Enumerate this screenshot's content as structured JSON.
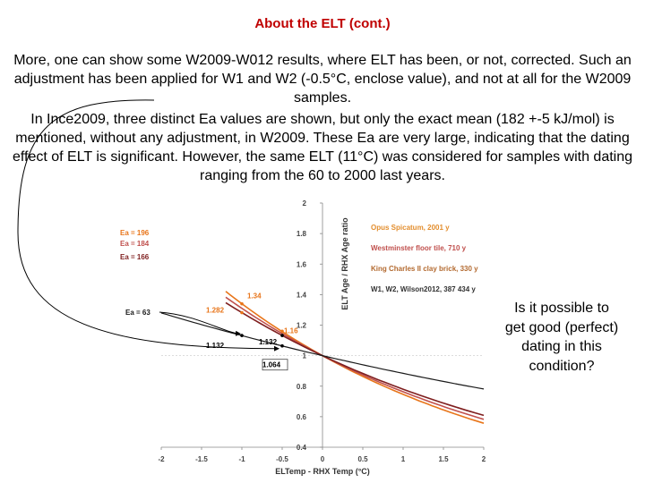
{
  "slide": {
    "title": "About the ELT (cont.)",
    "paragraph1": "More, one can show some W2009-W012 results, where ELT has been, or not, corrected. Such an adjustment  has been applied for W1 and W2 (-0.5°C, enclose value), and not at all for the W2009 samples.",
    "paragraph2": "In Ince2009, three distinct Ea values are shown, but only the exact mean (182 +-5 kJ/mol) is mentioned, without any adjustment, in W2009. These Ea are very large, indicating that the dating effect of ELT is significant. However, the same ELT (11°C) was considered for samples with dating ranging from the 60 to 2000 last years.",
    "question": "Is it possible to get good (perfect) dating in this condition?"
  },
  "colors": {
    "title": "#c00000",
    "ea196": "#e8751a",
    "ea184": "#c0504d",
    "ea166": "#7f1f1f",
    "ea63": "#1a1a1a",
    "legend_text": "#e38e2e"
  },
  "chart_data": {
    "type": "line",
    "xlabel": "ELTemp - RHX Temp (°C)",
    "ylabel": "ELT Age / RHX Age ratio",
    "xlim": [
      -2,
      2
    ],
    "ylim": [
      0.4,
      2
    ],
    "xticks": [
      "-2",
      "-1.5",
      "-1",
      "-0.5",
      "0",
      "0.5",
      "1",
      "1.5",
      "2"
    ],
    "yticks": [
      "0.4",
      "0.6",
      "0.8",
      "1",
      "1.2",
      "1.4",
      "1.6",
      "1.8",
      "2"
    ],
    "series": [
      {
        "name": "Ea = 196",
        "Ea": 196,
        "x": [
          -1.0,
          -0.5,
          0,
          0.5,
          1.0,
          1.5,
          2.0
        ],
        "y": [
          1.34,
          1.16,
          1.0,
          0.87,
          0.76,
          0.67,
          0.59
        ]
      },
      {
        "name": "Ea = 184",
        "Ea": 184,
        "x": [
          -1.0,
          -0.5,
          0,
          0.5,
          1.0,
          1.5,
          2.0
        ],
        "y": [
          1.31,
          1.15,
          1.0,
          0.88,
          0.77,
          0.68,
          0.61
        ]
      },
      {
        "name": "Ea = 166",
        "Ea": 166,
        "x": [
          -1.0,
          -0.5,
          0,
          0.5,
          1.0,
          1.5,
          2.0
        ],
        "y": [
          1.282,
          1.132,
          1.0,
          0.89,
          0.79,
          0.71,
          0.64
        ]
      },
      {
        "name": "Ea = 63",
        "Ea": 63,
        "x": [
          -2.0,
          -1.5,
          -1.0,
          -0.5,
          0,
          0.5,
          1.0,
          1.5,
          2.0
        ],
        "y": [
          1.28,
          1.2,
          1.132,
          1.064,
          1.0,
          0.96,
          0.92,
          0.88,
          0.84
        ]
      }
    ],
    "legend_labels": [
      "Opus Spicatum, 2001 y",
      "Westminster floor tile, 710 y",
      "King Charles II clay brick, 330 y",
      "W1, W2, Wilson2012, 387 434 y"
    ],
    "annotations": [
      {
        "text": "1.34",
        "x": -1.0,
        "y": 1.34
      },
      {
        "text": "1.282",
        "x": -1.0,
        "y": 1.282
      },
      {
        "text": "1.16",
        "x": -0.5,
        "y": 1.16
      },
      {
        "text": "1.132",
        "x": -0.5,
        "y": 1.132
      },
      {
        "text": "1.132",
        "x": -1.0,
        "y": 1.132
      },
      {
        "text": "1.064",
        "x": -0.5,
        "y": 1.064
      }
    ]
  }
}
